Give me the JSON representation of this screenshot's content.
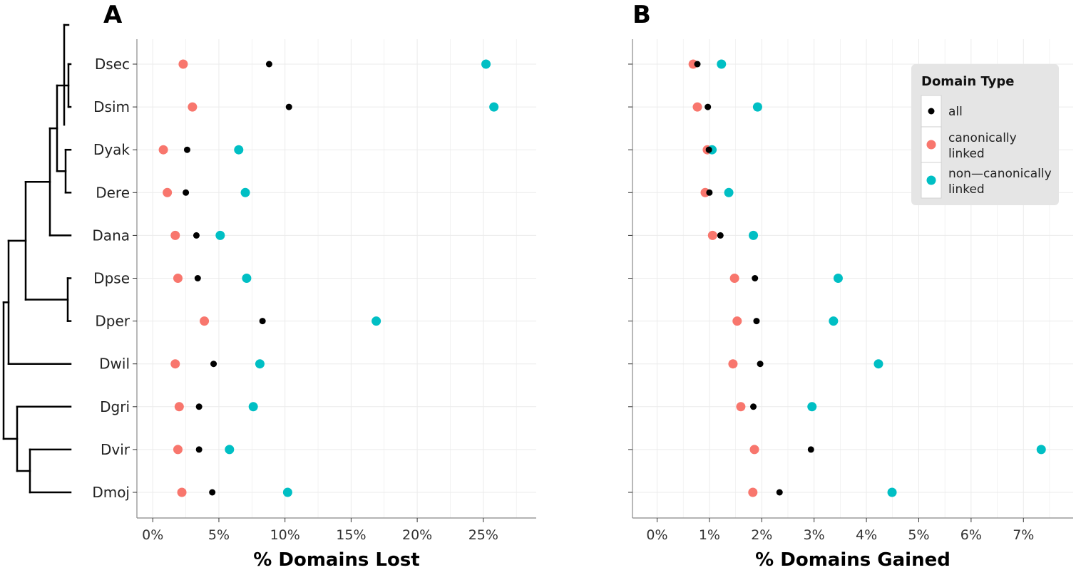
{
  "species": [
    "Dsec",
    "Dsim",
    "Dyak",
    "Dere",
    "Dana",
    "Dpse",
    "Dper",
    "Dwil",
    "Dgri",
    "Dvir",
    "Dmoj"
  ],
  "colors": {
    "all": "#000000",
    "canonical": "#F8766D",
    "noncanonical": "#00BFC4",
    "grid": "#ebebeb",
    "axis": "#888888",
    "tree": "#000000",
    "legend_bg": "#e5e5e5"
  },
  "legend": {
    "title": "Domain Type",
    "entries": [
      {
        "key": "all",
        "lines": [
          "all"
        ]
      },
      {
        "key": "canonical",
        "lines": [
          "canonically",
          "linked"
        ]
      },
      {
        "key": "noncanonical",
        "lines": [
          "non—canonically",
          "linked"
        ]
      }
    ]
  },
  "chart_data": [
    {
      "type": "scatter",
      "panel": "A",
      "xlabel": "% Domains Lost",
      "xlim": [
        -1.2,
        29.0
      ],
      "xticks": [
        0,
        5,
        10,
        15,
        20,
        25
      ],
      "xtick_labels": [
        "0%",
        "5%",
        "10%",
        "15%",
        "20%",
        "25%"
      ],
      "grid": true,
      "categories": [
        "Dsec",
        "Dsim",
        "Dyak",
        "Dere",
        "Dana",
        "Dpse",
        "Dper",
        "Dwil",
        "Dgri",
        "Dvir",
        "Dmoj"
      ],
      "series": [
        {
          "key": "all",
          "name": "all",
          "values": [
            8.8,
            10.3,
            2.6,
            2.5,
            3.3,
            3.4,
            8.3,
            4.6,
            3.5,
            3.5,
            4.5
          ]
        },
        {
          "key": "canonical",
          "name": "canonically linked",
          "values": [
            2.3,
            3.0,
            0.8,
            1.1,
            1.7,
            1.9,
            3.9,
            1.7,
            2.0,
            1.9,
            2.2
          ]
        },
        {
          "key": "noncanonical",
          "name": "non—canonically linked",
          "values": [
            25.2,
            25.8,
            6.5,
            7.0,
            5.1,
            7.1,
            16.9,
            8.1,
            7.6,
            5.8,
            10.2
          ]
        }
      ]
    },
    {
      "type": "scatter",
      "panel": "B",
      "xlabel": "% Domains Gained",
      "xlim": [
        -0.47,
        7.95
      ],
      "xticks": [
        0,
        1,
        2,
        3,
        4,
        5,
        6,
        7
      ],
      "xtick_labels": [
        "0%",
        "1%",
        "2%",
        "3%",
        "4%",
        "5%",
        "6%",
        "7%"
      ],
      "grid": true,
      "legend_position": "top-right",
      "categories": [
        "Dsec",
        "Dsim",
        "Dyak",
        "Dere",
        "Dana",
        "Dpse",
        "Dper",
        "Dwil",
        "Dgri",
        "Dvir",
        "Dmoj"
      ],
      "series": [
        {
          "key": "all",
          "name": "all",
          "values": [
            0.77,
            0.97,
            0.99,
            1.0,
            1.21,
            1.87,
            1.9,
            1.97,
            1.84,
            2.94,
            2.34
          ]
        },
        {
          "key": "canonical",
          "name": "canonically linked",
          "values": [
            0.69,
            0.77,
            0.96,
            0.92,
            1.06,
            1.48,
            1.53,
            1.45,
            1.6,
            1.86,
            1.83
          ]
        },
        {
          "key": "noncanonical",
          "name": "non—canonically linked",
          "values": [
            1.23,
            1.92,
            1.05,
            1.37,
            1.84,
            3.46,
            3.37,
            4.23,
            2.96,
            7.34,
            4.49
          ]
        }
      ]
    }
  ]
}
